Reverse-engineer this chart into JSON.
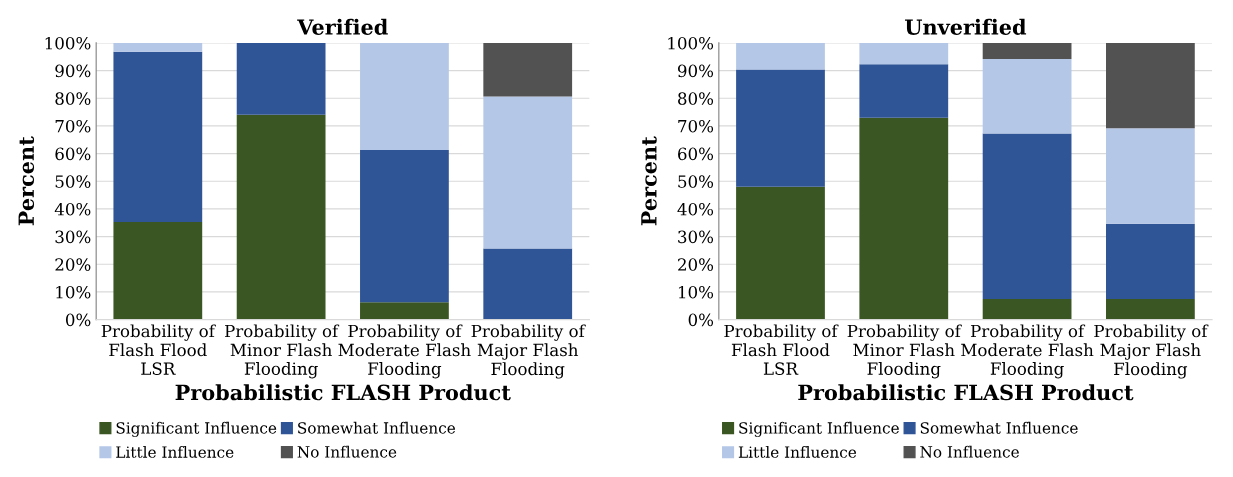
{
  "chart_data": [
    {
      "type": "bar",
      "title": "Verified",
      "xlabel": "Probabilistic FLASH Product",
      "ylabel": "Percent",
      "stacked": true,
      "categories": [
        "Probability of\nFlash Flood\nLSR",
        "Probability of\nMinor Flash\nFlooding",
        "Probability of\nModerate Flash\nFlooding",
        "Probability of\nMajor Flash\nFlooding"
      ],
      "series": [
        {
          "name": "Significant Influence",
          "color": "#3a5622",
          "values": [
            35.3,
            74,
            6.3,
            0
          ]
        },
        {
          "name": "Somewhat Influence",
          "color": "#2f5597",
          "values": [
            61.5,
            26,
            55,
            25.7
          ]
        },
        {
          "name": "Little Influence",
          "color": "#b4c7e7",
          "values": [
            3.2,
            0,
            38.7,
            54.9
          ]
        },
        {
          "name": "No Influence",
          "color": "#525252",
          "values": [
            0,
            0,
            0,
            19.4
          ]
        }
      ],
      "ylim": [
        0,
        100
      ],
      "yticks": [
        {
          "value": 0,
          "label": "0%"
        },
        {
          "value": 10,
          "label": "10%"
        },
        {
          "value": 20,
          "label": "20%"
        },
        {
          "value": 30,
          "label": "30%"
        },
        {
          "value": 40,
          "label": "40%"
        },
        {
          "value": 50,
          "label": "50%"
        },
        {
          "value": 60,
          "label": "60%"
        },
        {
          "value": 70,
          "label": "70%"
        },
        {
          "value": 80,
          "label": "80%"
        },
        {
          "value": 90,
          "label": "90%"
        },
        {
          "value": 100,
          "label": "100%"
        }
      ],
      "grid": "y",
      "legend": "bottom"
    },
    {
      "type": "bar",
      "title": "Unverified",
      "xlabel": "Probabilistic FLASH Product",
      "ylabel": "Percent",
      "stacked": true,
      "categories": [
        "Probability of\nFlash Flood\nLSR",
        "Probability of\nMinor Flash\nFlooding",
        "Probability of\nModerate Flash\nFlooding",
        "Probability of\nMajor Flash\nFlooding"
      ],
      "series": [
        {
          "name": "Significant Influence",
          "color": "#3a5622",
          "values": [
            48,
            73,
            7.4,
            7.4
          ]
        },
        {
          "name": "Somewhat Influence",
          "color": "#2f5597",
          "values": [
            42.4,
            19.3,
            59.9,
            27.2
          ]
        },
        {
          "name": "Little Influence",
          "color": "#b4c7e7",
          "values": [
            9.6,
            7.7,
            26.9,
            34.6
          ]
        },
        {
          "name": "No Influence",
          "color": "#525252",
          "values": [
            0,
            0,
            5.8,
            30.8
          ]
        }
      ],
      "ylim": [
        0,
        100
      ],
      "yticks": [
        {
          "value": 0,
          "label": "0%"
        },
        {
          "value": 10,
          "label": "10%"
        },
        {
          "value": 20,
          "label": "20%"
        },
        {
          "value": 30,
          "label": "30%"
        },
        {
          "value": 40,
          "label": "40%"
        },
        {
          "value": 50,
          "label": "50%"
        },
        {
          "value": 60,
          "label": "60%"
        },
        {
          "value": 70,
          "label": "70%"
        },
        {
          "value": 80,
          "label": "80%"
        },
        {
          "value": 90,
          "label": "90%"
        },
        {
          "value": 100,
          "label": "100%"
        }
      ],
      "grid": "y",
      "legend": "bottom"
    }
  ]
}
